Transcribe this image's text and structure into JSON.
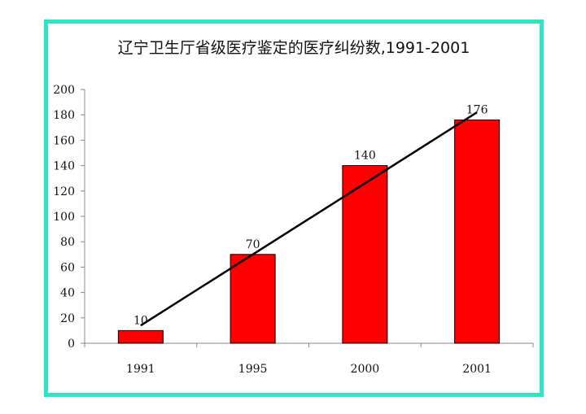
{
  "chart_data": {
    "type": "bar",
    "title": "辽宁卫生厅省级医疗鉴定的医疗纠纷数,1991-2001",
    "categories": [
      "1991",
      "1995",
      "2000",
      "2001"
    ],
    "values": [
      10,
      70,
      140,
      176
    ],
    "data_labels": [
      "10",
      "70",
      "140",
      "176"
    ],
    "ylim": [
      0,
      200
    ],
    "yticks": [
      0,
      20,
      40,
      60,
      80,
      100,
      120,
      140,
      160,
      180,
      200
    ],
    "xlabel": "",
    "ylabel": "",
    "grid": false,
    "trendline": {
      "from": [
        0,
        14
      ],
      "to": [
        3,
        182
      ]
    },
    "colors": {
      "bar": "#ff0000",
      "bar_edge": "#000000",
      "frame": "#2ee6c3",
      "trendline": "#000000"
    }
  }
}
